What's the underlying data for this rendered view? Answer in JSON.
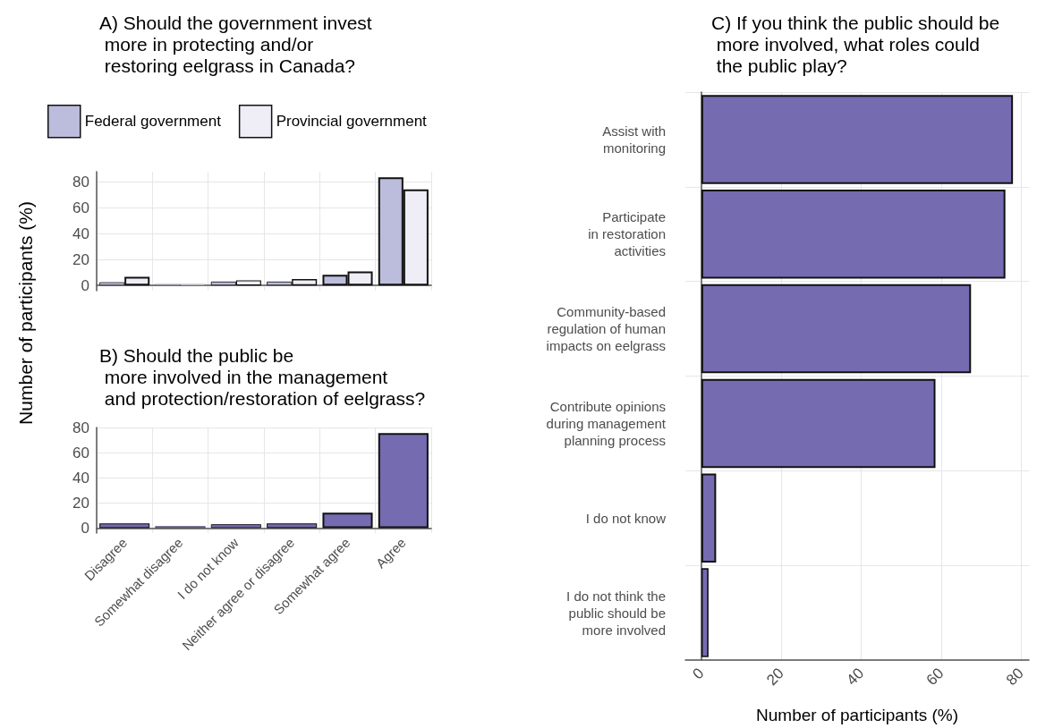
{
  "chart_data": [
    {
      "type": "bar",
      "title": "A) Should the government invest\n more in protecting and/or\n restoring eelgrass in Canada?",
      "ylabel": "Number of participants (%)",
      "categories": [
        null,
        null,
        null,
        null,
        null,
        null
      ],
      "series": [
        {
          "name": "Federal government",
          "color": "#bcbcdc",
          "values": [
            2.5,
            1,
            3,
            3,
            8.3,
            83.7
          ]
        },
        {
          "name": "Provincial government",
          "color": "#efedf5",
          "values": [
            6.7,
            1,
            4,
            5,
            10.8,
            74.3
          ]
        }
      ],
      "ylim": [
        -4,
        88
      ],
      "yticks": [
        0,
        20,
        40,
        60,
        80
      ],
      "grid": true,
      "legend": "top",
      "tick_labels": "y"
    },
    {
      "type": "bar",
      "title": "B) Should the public be\n more involved in the management\n and protection/restoration of eelgrass?",
      "categories": [
        "Disagree",
        "Somewhat disagree",
        "I do not know",
        "Neither agree or disagree",
        "Somewhat agree",
        "Agree"
      ],
      "values": [
        3.7,
        1.4,
        3,
        3.7,
        12.2,
        75.6
      ],
      "color": "#756bb1",
      "ylim": [
        -4,
        80
      ],
      "yticks": [
        0,
        20,
        40,
        60,
        80
      ],
      "grid": true
    },
    {
      "type": "bar",
      "orientation": "horizontal",
      "title": "C) If you think the public should be\n more involved, what roles could\n the public play?",
      "xlabel": "Number of participants (%)",
      "categories": [
        "Assist with\nmonitoring",
        "Participate\nin restoration\nactivities",
        "Community-based\nregulation of human\nimpacts on eelgrass",
        "Contribute opinions\nduring management\nplanning process",
        "I do not know",
        "I do not think the\npublic should be\nmore involved"
      ],
      "values": [
        78,
        76.1,
        67.5,
        58.6,
        3.7,
        1.8
      ],
      "color": "#756bb1",
      "xlim": [
        -4,
        82
      ],
      "xticks": [
        0,
        20,
        40,
        60,
        80
      ],
      "grid": true
    }
  ]
}
